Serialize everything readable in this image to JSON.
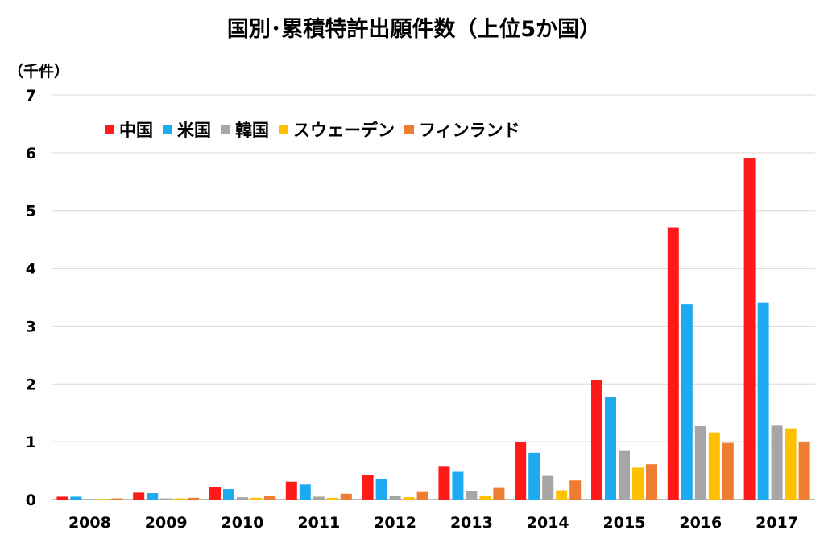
{
  "colors": {
    "china": "#ff1a1a",
    "usa": "#1eaaf0",
    "korea": "#a6a6a6",
    "sweden": "#ffc000",
    "finland": "#ed7d31",
    "grid": "#d9d9d9",
    "axis": "#a6a6a6"
  },
  "chart_data": {
    "type": "bar",
    "title": "国別･累積特許出願件数（上位5か国）",
    "ylabel": "（千件）",
    "xlabel": "",
    "ylim": [
      0,
      7
    ],
    "yticks": [
      "0",
      "1",
      "2",
      "3",
      "4",
      "5",
      "6",
      "7"
    ],
    "legend_position": "top-left",
    "grid": true,
    "categories": [
      "2008",
      "2009",
      "2010",
      "2011",
      "2012",
      "2013",
      "2014",
      "2015",
      "2016",
      "2017"
    ],
    "series": [
      {
        "name": "中国",
        "color_key": "china",
        "values": [
          0.05,
          0.12,
          0.21,
          0.31,
          0.42,
          0.58,
          1.0,
          2.07,
          4.71,
          5.9
        ]
      },
      {
        "name": "米国",
        "color_key": "usa",
        "values": [
          0.05,
          0.11,
          0.18,
          0.26,
          0.36,
          0.48,
          0.81,
          1.77,
          3.38,
          3.4
        ]
      },
      {
        "name": "韓国",
        "color_key": "korea",
        "values": [
          0.01,
          0.02,
          0.04,
          0.05,
          0.07,
          0.14,
          0.41,
          0.84,
          1.28,
          1.29
        ]
      },
      {
        "name": "スウェーデン",
        "color_key": "sweden",
        "values": [
          0.01,
          0.02,
          0.03,
          0.03,
          0.04,
          0.06,
          0.16,
          0.55,
          1.16,
          1.23
        ]
      },
      {
        "name": "フィンランド",
        "color_key": "finland",
        "values": [
          0.02,
          0.03,
          0.07,
          0.1,
          0.13,
          0.2,
          0.33,
          0.61,
          0.98,
          0.99
        ]
      }
    ]
  }
}
